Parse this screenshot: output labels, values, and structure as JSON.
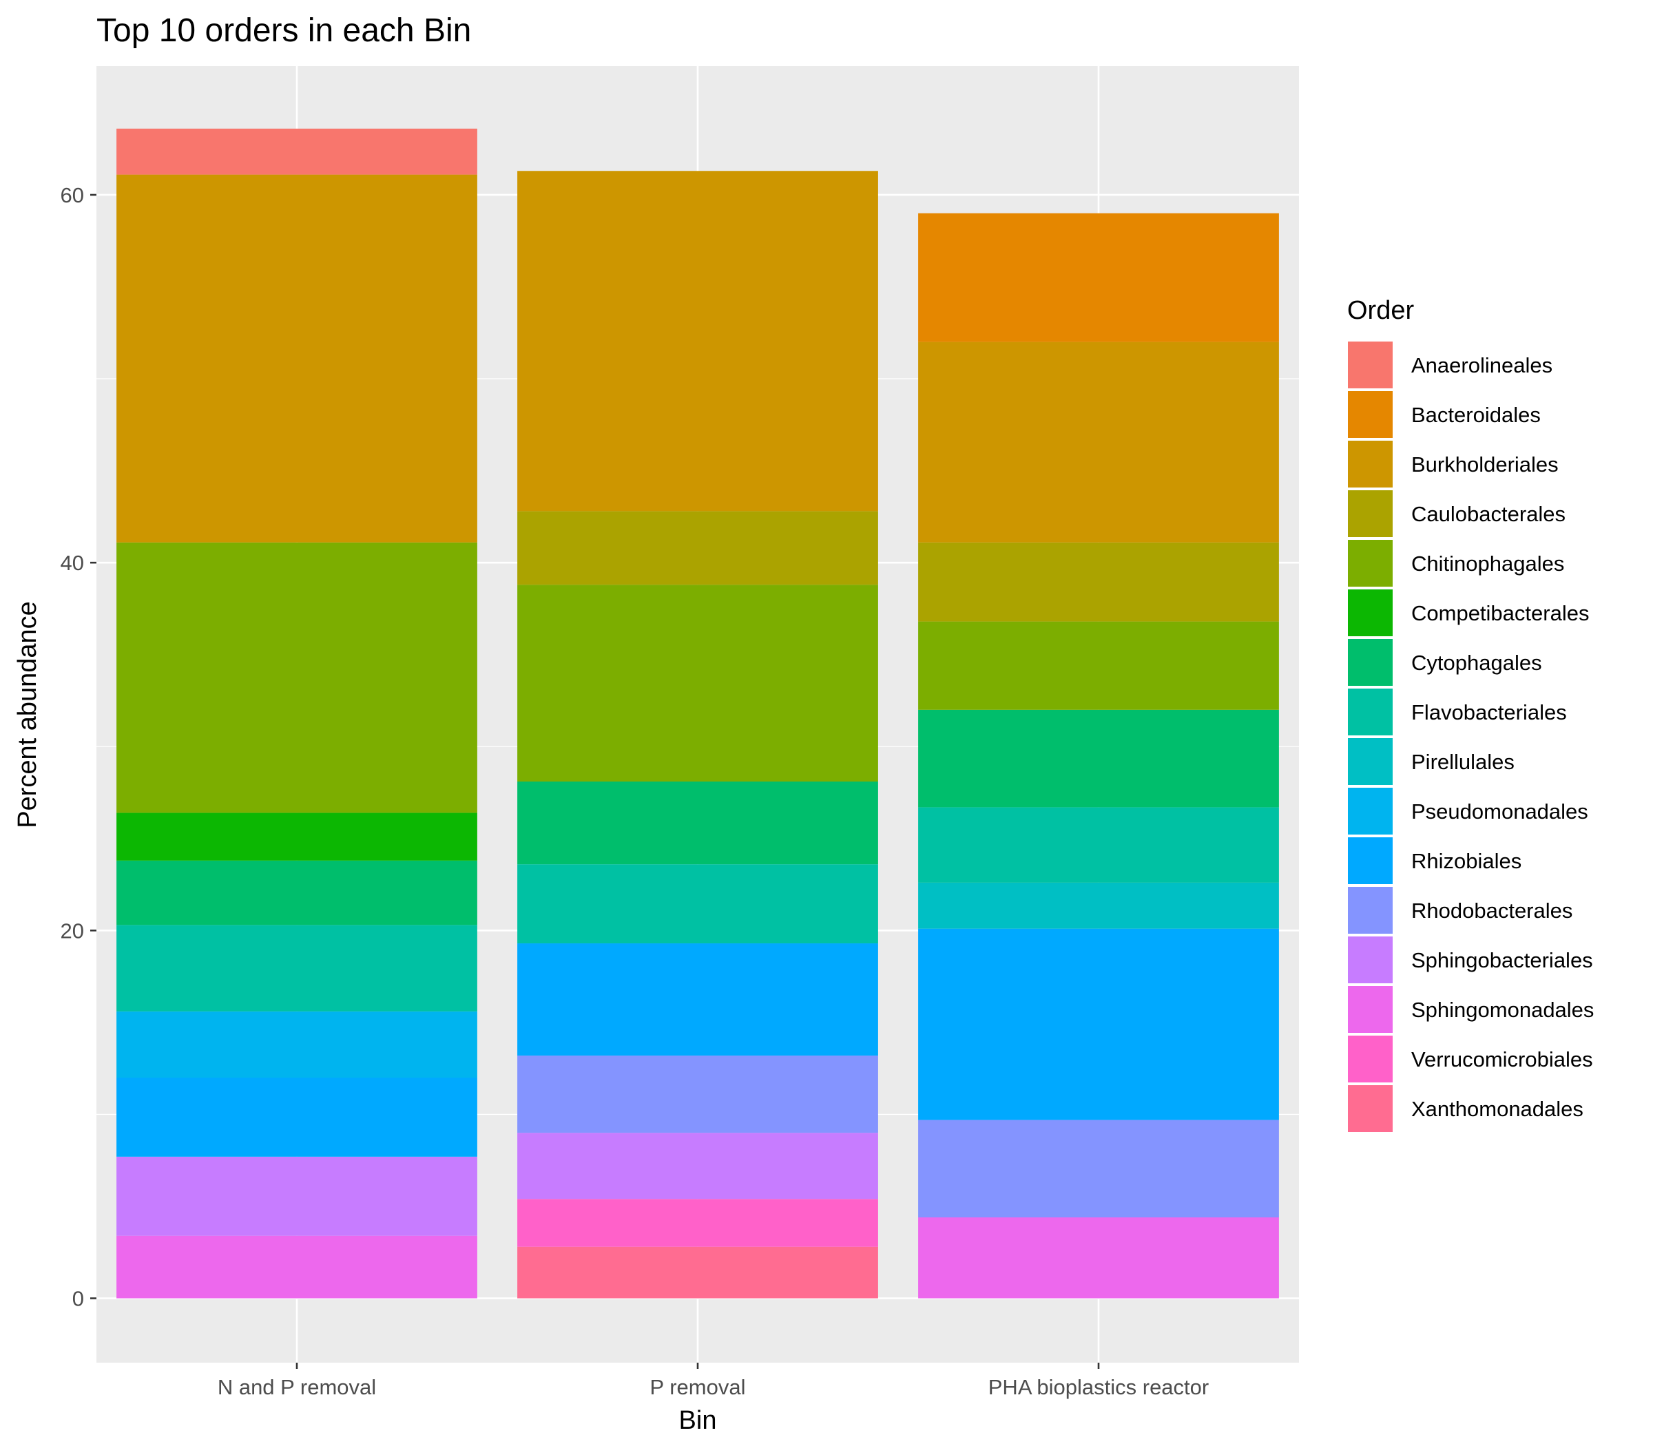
{
  "chart_data": {
    "type": "bar",
    "stacked": true,
    "title": "Top 10 orders in each Bin",
    "xlabel": "Bin",
    "ylabel": "Percent abundance",
    "ylim": [
      -3.5,
      67
    ],
    "yticks": [
      0,
      20,
      40,
      60
    ],
    "grid": true,
    "legend_position": "right",
    "legend_title": "Order",
    "categories": [
      "N and P removal",
      "P removal",
      "PHA bioplastics reactor"
    ],
    "series": [
      {
        "name": "Xanthomonadales",
        "color": "#FF6C91",
        "values": [
          0,
          2.8,
          0
        ]
      },
      {
        "name": "Sphingomonadales",
        "color": "#ED68ED",
        "values": [
          3.4,
          0,
          4.4
        ]
      },
      {
        "name": "Verrucomicrobiales",
        "color": "#FF61C9",
        "values": [
          0,
          2.6,
          0
        ]
      },
      {
        "name": "Sphingobacteriales",
        "color": "#C77CFF",
        "values": [
          4.3,
          3.6,
          0
        ]
      },
      {
        "name": "Rhodobacterales",
        "color": "#8494FF",
        "values": [
          0,
          4.2,
          5.3
        ]
      },
      {
        "name": "Rhizobiales",
        "color": "#00A9FF",
        "values": [
          4.3,
          6.1,
          10.4
        ]
      },
      {
        "name": "Pseudomonadales",
        "color": "#00B4EF",
        "values": [
          3.6,
          0,
          0
        ]
      },
      {
        "name": "Pirellulales",
        "color": "#00BFC4",
        "values": [
          0,
          0,
          2.5
        ]
      },
      {
        "name": "Flavobacteriales",
        "color": "#00C1A3",
        "values": [
          4.7,
          4.3,
          4.1
        ]
      },
      {
        "name": "Cytophagales",
        "color": "#00BE6C",
        "values": [
          3.5,
          4.5,
          5.3
        ]
      },
      {
        "name": "Competibacterales",
        "color": "#0CB702",
        "values": [
          2.6,
          0,
          0
        ]
      },
      {
        "name": "Chitinophagales",
        "color": "#7CAE00",
        "values": [
          14.7,
          10.7,
          4.8
        ]
      },
      {
        "name": "Caulobacterales",
        "color": "#ABA300",
        "values": [
          0,
          4.0,
          4.3
        ]
      },
      {
        "name": "Burkholderiales",
        "color": "#CD9600",
        "values": [
          20.0,
          18.5,
          10.9
        ]
      },
      {
        "name": "Bacteroidales",
        "color": "#E58700",
        "values": [
          0,
          0,
          7.0
        ]
      },
      {
        "name": "Anaerolineales",
        "color": "#F8766D",
        "values": [
          2.5,
          0,
          0
        ]
      }
    ],
    "legend_order": [
      "Anaerolineales",
      "Bacteroidales",
      "Burkholderiales",
      "Caulobacterales",
      "Chitinophagales",
      "Competibacterales",
      "Cytophagales",
      "Flavobacteriales",
      "Pirellulales",
      "Pseudomonadales",
      "Rhizobiales",
      "Rhodobacterales",
      "Sphingobacteriales",
      "Sphingomonadales",
      "Verrucomicrobiales",
      "Xanthomonadales"
    ]
  }
}
